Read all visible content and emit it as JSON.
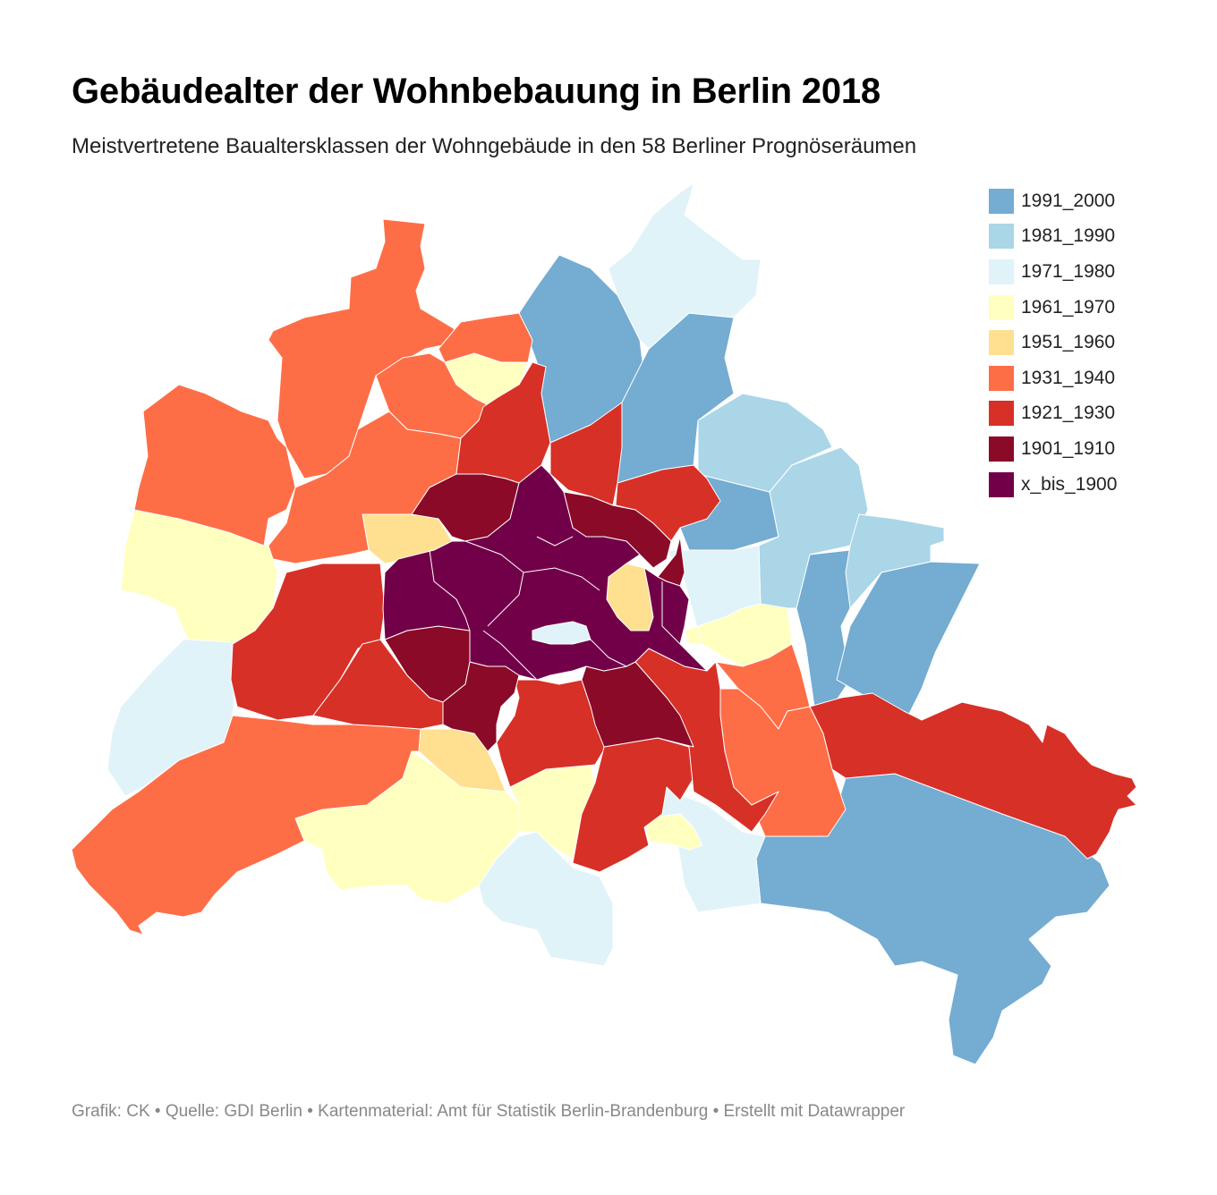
{
  "header": {
    "title": "Gebäudealter der Wohnbebauung in Berlin 2018",
    "subtitle": "Meistvertretene Baualtersklassen der Wohngebäude in den 58 Berliner Prognöseräumen"
  },
  "legend": [
    {
      "label": "1991_2000",
      "color": "#74acd2"
    },
    {
      "label": "1981_1990",
      "color": "#aad6e8"
    },
    {
      "label": "1971_1980",
      "color": "#e0f3f8"
    },
    {
      "label": "1961_1970",
      "color": "#ffffbf"
    },
    {
      "label": "1951_1960",
      "color": "#fee090"
    },
    {
      "label": "1931_1940",
      "color": "#fd6e47"
    },
    {
      "label": "1921_1930",
      "color": "#d73027"
    },
    {
      "label": "1901_1910",
      "color": "#8b0a28"
    },
    {
      "label": "x_bis_1900",
      "color": "#720048"
    }
  ],
  "footer": {
    "text": "Grafik: CK • Quelle: GDI Berlin • Kartenmaterial: Amt für Statistik Berlin-Brandenburg  • Erstellt mit Datawrapper"
  }
}
